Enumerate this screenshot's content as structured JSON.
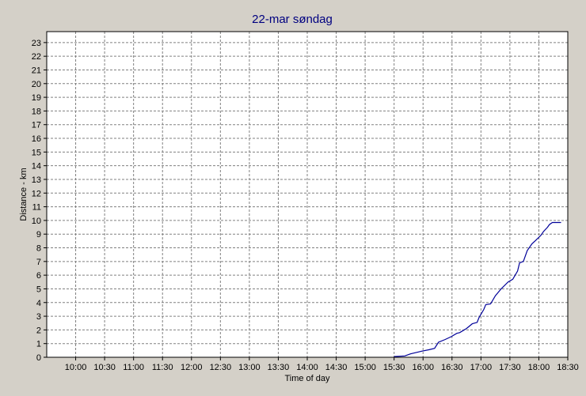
{
  "chart_data": {
    "type": "line",
    "title": "22-mar søndag",
    "xlabel": "Time of day",
    "ylabel": "Distance - km",
    "xlim": [
      "09:30",
      "18:30"
    ],
    "ylim": [
      0,
      23.8
    ],
    "x_ticks": [
      "10:00",
      "10:30",
      "11:00",
      "11:30",
      "12:00",
      "12:30",
      "13:00",
      "13:30",
      "14:00",
      "14:30",
      "15:00",
      "15:30",
      "16:00",
      "16:30",
      "17:00",
      "17:30",
      "18:00",
      "18:30"
    ],
    "y_ticks": [
      0,
      1,
      2,
      3,
      4,
      5,
      6,
      7,
      8,
      9,
      10,
      11,
      12,
      13,
      14,
      15,
      16,
      17,
      18,
      19,
      20,
      21,
      22,
      23
    ],
    "grid": true,
    "colors": {
      "line": "#000099",
      "title": "#000080",
      "grid": "#808080",
      "plot_bg": "#ffffff",
      "page_bg": "#d4d0c8"
    },
    "series": [
      {
        "x": [
          "15:30",
          "15:41",
          "15:47",
          "15:53",
          "15:59",
          "16:06",
          "16:12",
          "16:16",
          "16:23",
          "16:29",
          "16:35",
          "16:38",
          "16:45",
          "16:51",
          "16:56",
          "16:58",
          "17:03",
          "17:05",
          "17:10",
          "17:15",
          "17:21",
          "17:28",
          "17:33",
          "17:38",
          "17:40",
          "17:44",
          "17:48",
          "17:53",
          "17:56",
          "18:02",
          "18:05",
          "18:09",
          "18:11",
          "18:14",
          "18:18",
          "18:23"
        ],
        "y": [
          0.05,
          0.1,
          0.25,
          0.35,
          0.45,
          0.55,
          0.65,
          1.1,
          1.3,
          1.5,
          1.75,
          1.8,
          2.1,
          2.45,
          2.55,
          2.9,
          3.5,
          3.85,
          3.9,
          4.5,
          5.0,
          5.5,
          5.7,
          6.3,
          6.9,
          7.0,
          7.8,
          8.3,
          8.5,
          8.9,
          9.2,
          9.5,
          9.7,
          9.85,
          9.85,
          9.85
        ]
      }
    ]
  }
}
